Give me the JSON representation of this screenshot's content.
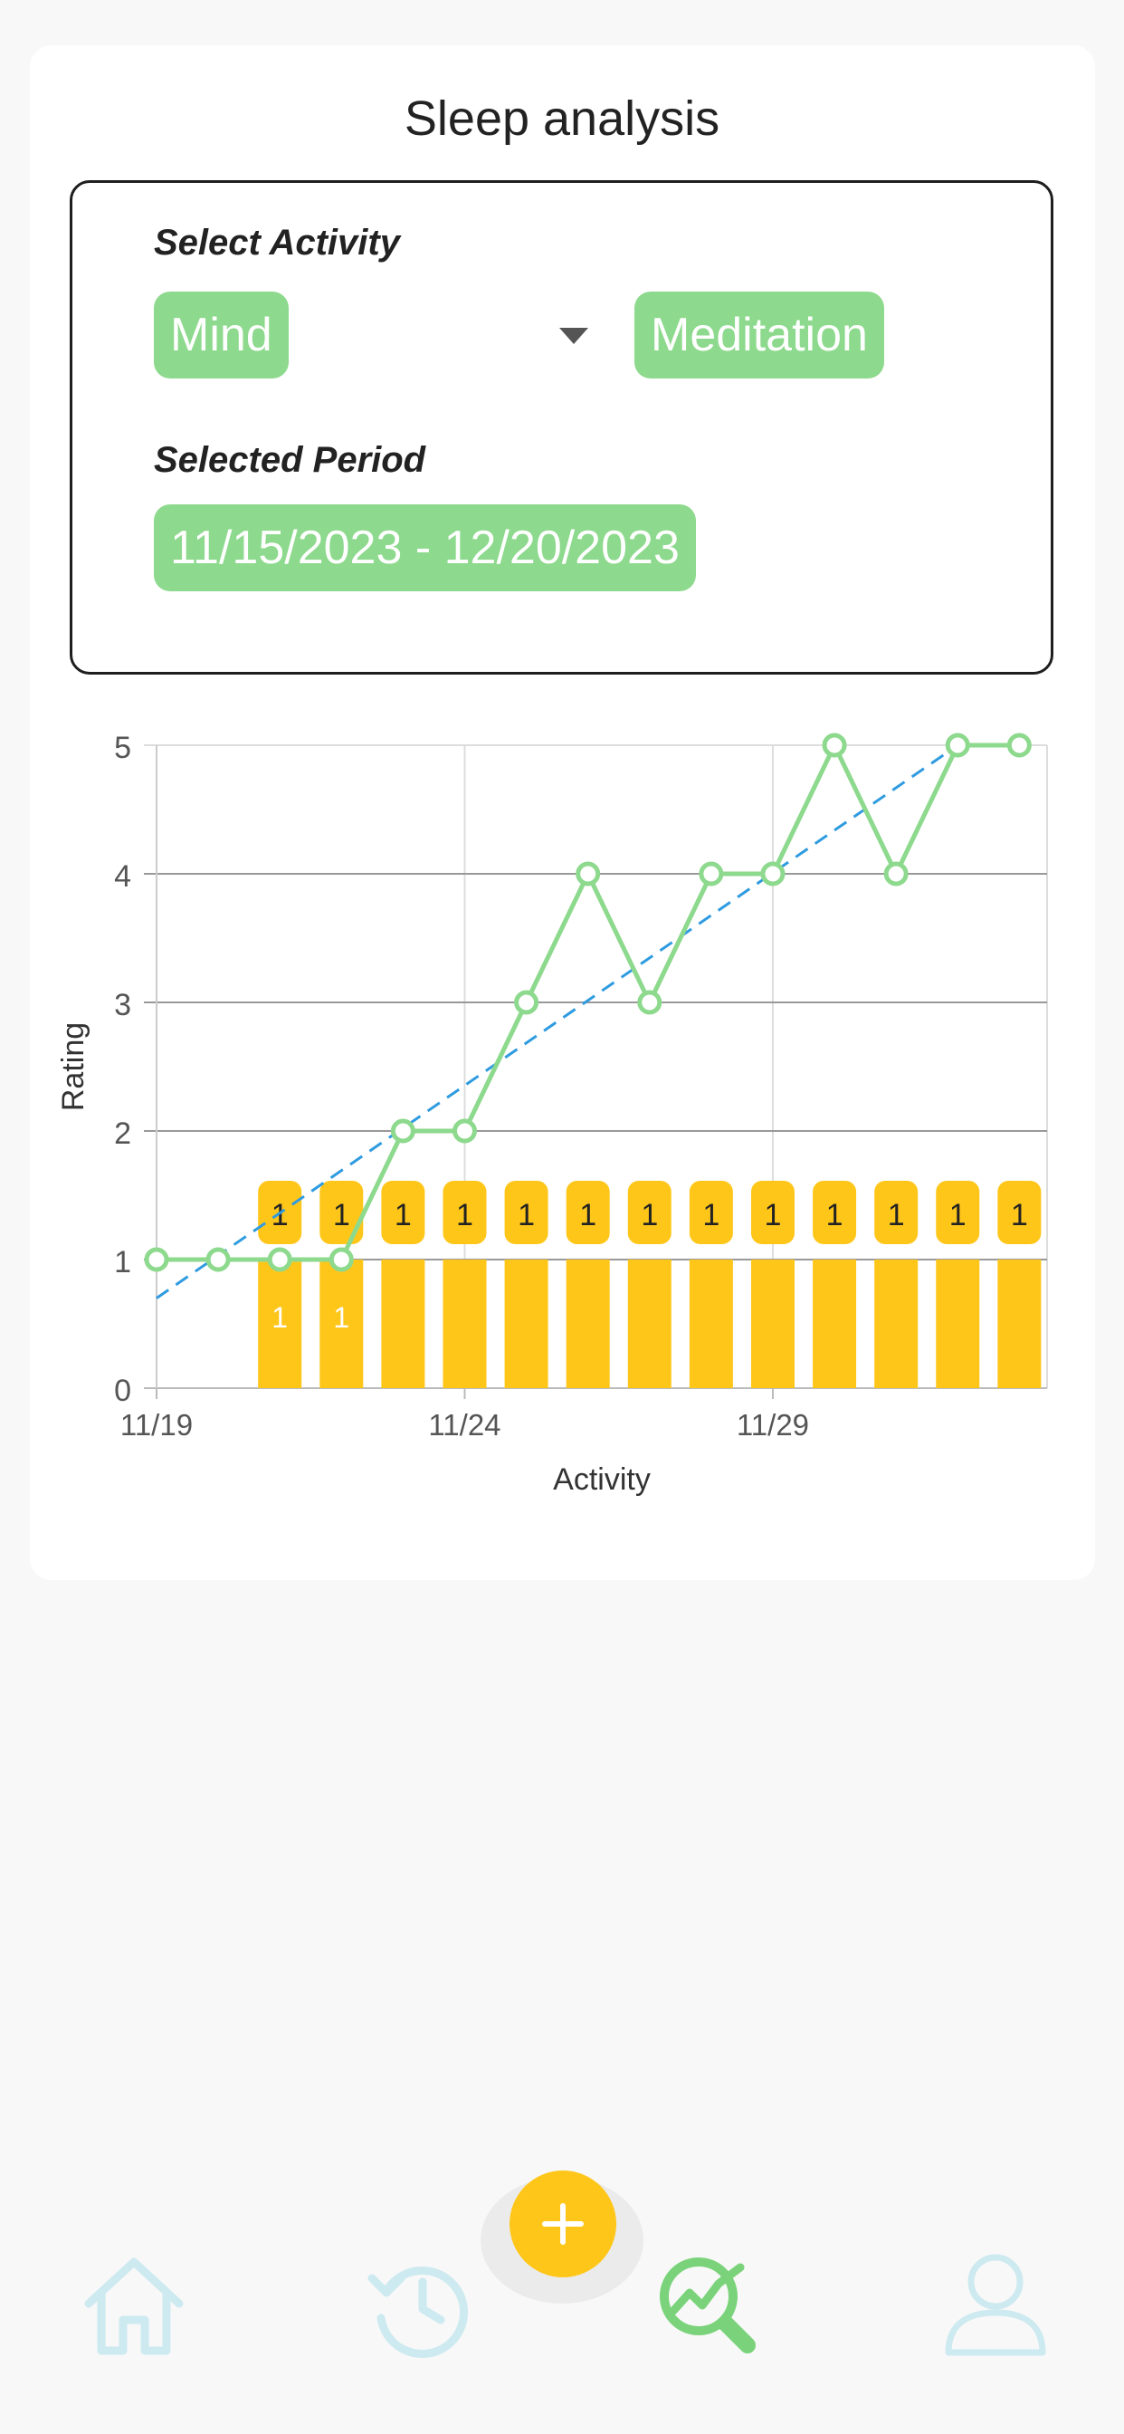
{
  "page": {
    "title": "Sleep analysis"
  },
  "selector": {
    "activity_label": "Select Activity",
    "category_value": "Mind",
    "activity_value": "Meditation",
    "period_label": "Selected Period",
    "period_value": "11/15/2023 - 12/20/2023"
  },
  "colors": {
    "accent_green": "#8dd98d",
    "bar_yellow": "#ffc61a",
    "trend_blue": "#2f9be0",
    "nav_inactive": "#cdeaf0",
    "nav_active": "#7ad37a"
  },
  "chart_data": {
    "type": "line+bar",
    "xlabel": "Activity",
    "ylabel": "Rating",
    "ylim": [
      0,
      5
    ],
    "yticks": [
      0,
      1,
      2,
      3,
      4,
      5
    ],
    "xticks": [
      {
        "day": 19,
        "label": "11/19"
      },
      {
        "day": 24,
        "label": "11/24"
      },
      {
        "day": 29,
        "label": "11/29"
      }
    ],
    "grid": true,
    "series": [
      {
        "kind": "line",
        "points": [
          {
            "day": 19,
            "rating": 1
          },
          {
            "day": 20,
            "rating": 1
          },
          {
            "day": 21,
            "rating": 1
          },
          {
            "day": 22,
            "rating": 1
          },
          {
            "day": 23,
            "rating": 2
          },
          {
            "day": 24,
            "rating": 2
          },
          {
            "day": 25,
            "rating": 3
          },
          {
            "day": 26,
            "rating": 4
          },
          {
            "day": 27,
            "rating": 3
          },
          {
            "day": 28,
            "rating": 4
          },
          {
            "day": 29,
            "rating": 4
          },
          {
            "day": 30,
            "rating": 5
          },
          {
            "day": 31,
            "rating": 4
          },
          {
            "day": 32,
            "rating": 5
          },
          {
            "day": 33,
            "rating": 5
          }
        ]
      },
      {
        "kind": "bar",
        "points": [
          {
            "day": 21,
            "value": 1,
            "label": "1"
          },
          {
            "day": 22,
            "value": 1,
            "label": "1"
          },
          {
            "day": 23,
            "value": 1,
            "label": "1"
          },
          {
            "day": 24,
            "value": 1,
            "label": "1"
          },
          {
            "day": 25,
            "value": 1,
            "label": "1"
          },
          {
            "day": 26,
            "value": 1,
            "label": "1"
          },
          {
            "day": 27,
            "value": 1,
            "label": "1"
          },
          {
            "day": 28,
            "value": 1,
            "label": "1"
          },
          {
            "day": 29,
            "value": 1,
            "label": "1"
          },
          {
            "day": 30,
            "value": 1,
            "label": "1"
          },
          {
            "day": 31,
            "value": 1,
            "label": "1"
          },
          {
            "day": 32,
            "value": 1,
            "label": "1"
          },
          {
            "day": 33,
            "value": 1,
            "label": "1"
          }
        ],
        "inner_labels": [
          {
            "day": 21,
            "label": "1"
          },
          {
            "day": 22,
            "label": "1"
          }
        ]
      },
      {
        "kind": "trendline",
        "style": "dashed",
        "from": {
          "day": 19,
          "rating": 0.7
        },
        "to": {
          "day": 32,
          "rating": 5
        }
      }
    ]
  },
  "nav": {
    "items": [
      {
        "icon": "home-icon"
      },
      {
        "icon": "history-icon"
      },
      {
        "icon": "analysis-icon",
        "active": true
      },
      {
        "icon": "profile-icon"
      }
    ],
    "fab_icon": "plus-icon"
  }
}
